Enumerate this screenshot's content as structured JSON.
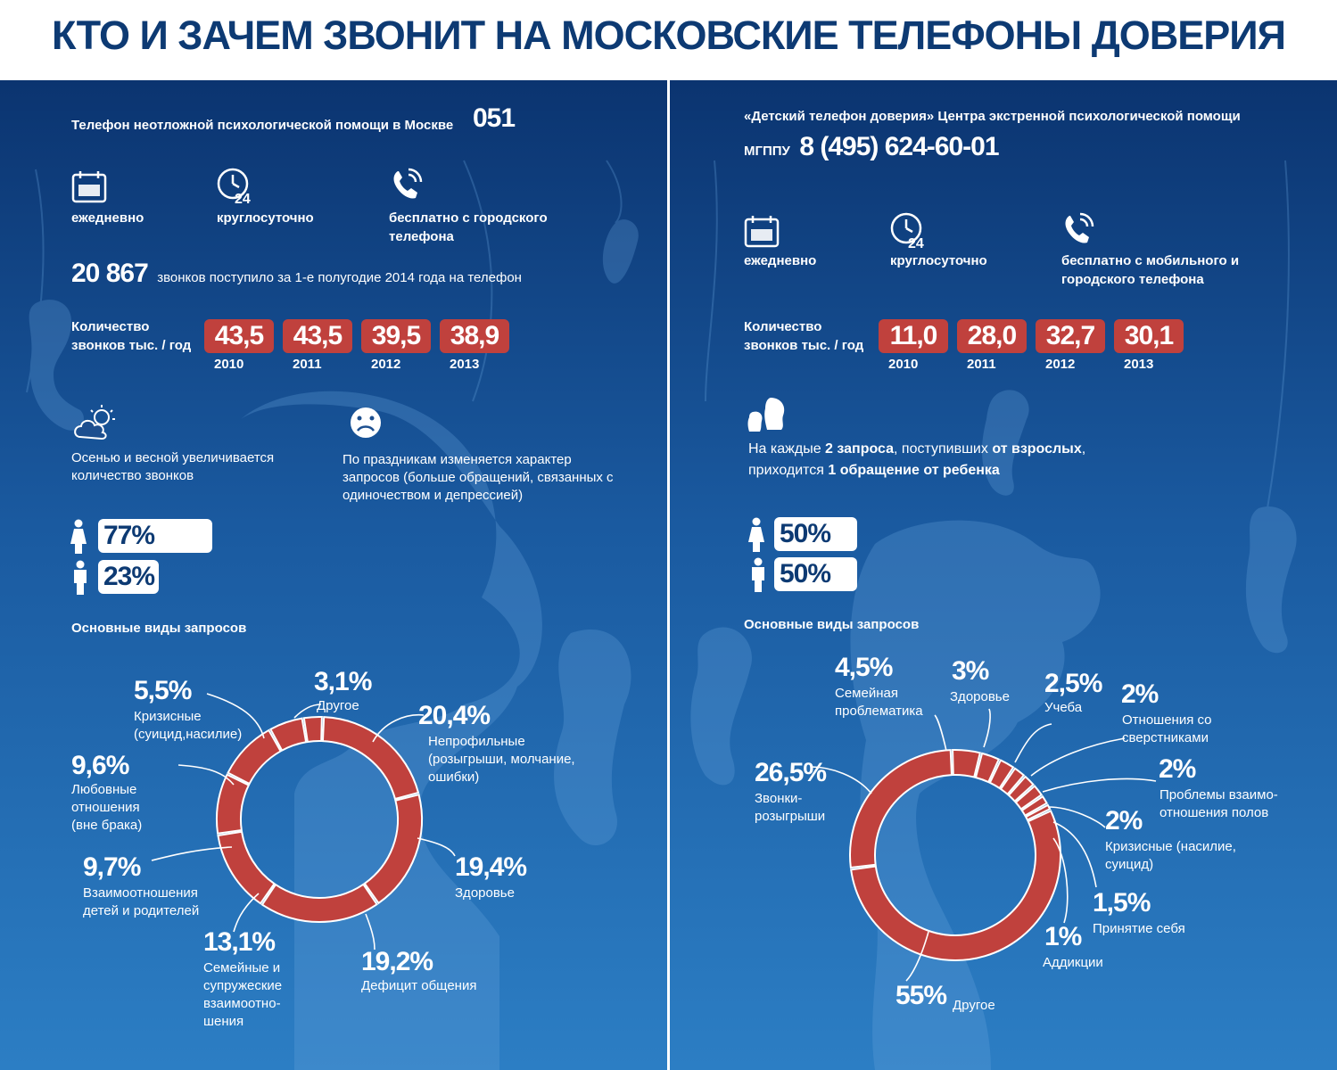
{
  "title": "КТО И ЗАЧЕМ ЗВОНИТ НА МОСКОВСКИЕ ТЕЛЕФОНЫ ДОВЕРИЯ",
  "left": {
    "intro": "Телефон неотложной психологической помощи в Москве",
    "number": "051",
    "features": [
      "ежедневно",
      "круглосуточно",
      "бесплатно с городского телефона"
    ],
    "calls_count": "20 867",
    "calls_text": "звонков поступило за 1-е полугодие 2014 года на телефон",
    "calls_label": "Количество звонков тыс. / год",
    "years": [
      {
        "value": "43,5",
        "year": "2010"
      },
      {
        "value": "43,5",
        "year": "2011"
      },
      {
        "value": "39,5",
        "year": "2012"
      },
      {
        "value": "38,9",
        "year": "2013"
      }
    ],
    "season_note": "Осенью и весной увеличивается количество звонков",
    "holiday_note": "По праздникам изменяется характер запросов (больше обращений, связанных с одиночеством и депрессией)",
    "female_pct": "77%",
    "male_pct": "23%",
    "requests_title": "Основные виды запросов"
  },
  "right": {
    "intro": "«Детский телефон доверия» Центра экстренной психологической помощи",
    "org": "МГППУ",
    "number": "8 (495) 624-60-01",
    "features": [
      "ежедневно",
      "круглосуточно",
      "бесплатно с мобильного и городского телефона"
    ],
    "calls_label": "Количество звонков тыс. / год",
    "years": [
      {
        "value": "11,0",
        "year": "2010"
      },
      {
        "value": "28,0",
        "year": "2011"
      },
      {
        "value": "32,7",
        "year": "2012"
      },
      {
        "value": "30,1",
        "year": "2013"
      }
    ],
    "ratio": {
      "p1": "На каждые",
      "b1": "2 запроса",
      "p2": ", поступивших",
      "b2": "от взрослых",
      "p3": ",",
      "p4": "приходится",
      "b3": "1 обращение от ребенка"
    },
    "female_pct": "50%",
    "male_pct": "50%",
    "requests_title": "Основные виды запросов"
  },
  "chart_data": [
    {
      "type": "pie",
      "title": "Основные виды запросов",
      "categories": [
        "Непрофильные (розыгрыши, молчание, ошибки)",
        "Здоровье",
        "Дефицит общения",
        "Семейные и супружеские взаимоотно-шения",
        "Взаимоотношения детей и родителей",
        "Любовные отношения (вне брака)",
        "Кризисные (суицид,насилие)",
        "Другое"
      ],
      "values": [
        20.4,
        19.4,
        19.2,
        13.1,
        9.7,
        9.6,
        5.5,
        3.1
      ],
      "labels": [
        "20,4%",
        "19,4%",
        "19,2%",
        "13,1%",
        "9,7%",
        "9,6%",
        "5,5%",
        "3,1%"
      ],
      "color": "#c0413d"
    },
    {
      "type": "pie",
      "title": "Основные виды запросов",
      "categories": [
        "Семейная проблематика",
        "Здоровье",
        "Учеба",
        "Отношения со сверстниками",
        "Проблемы взаимо-отношения полов",
        "Кризисные (насилие, суицид)",
        "Принятие себя",
        "Аддикции",
        "Другое",
        "Звонки-розыгрыши"
      ],
      "values": [
        4.5,
        3,
        2.5,
        2,
        2,
        2,
        1.5,
        1,
        55,
        26.5
      ],
      "labels": [
        "4,5%",
        "3%",
        "2,5%",
        "2%",
        "2%",
        "2%",
        "1,5%",
        "1%",
        "55%",
        "26,5%"
      ],
      "color": "#c0413d"
    }
  ]
}
